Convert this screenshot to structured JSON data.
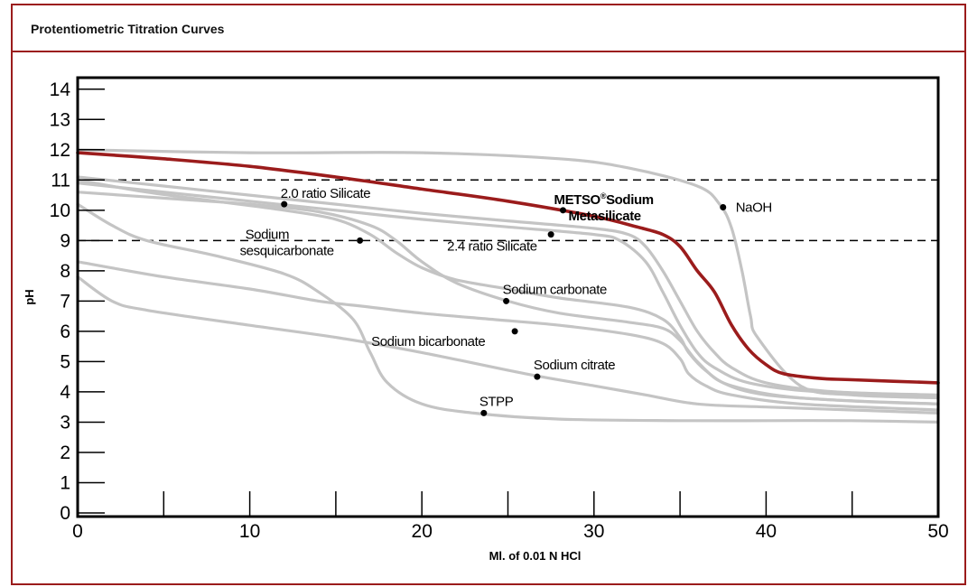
{
  "panel": {
    "title": "Protentiometric Titration Curves"
  },
  "chart_data": {
    "type": "line",
    "title": "",
    "xlabel": "Ml. of 0.01 N HCl",
    "ylabel": "pH",
    "xlim": [
      0,
      50
    ],
    "ylim": [
      0,
      15
    ],
    "x_ticks": [
      0,
      10,
      20,
      30,
      40,
      50
    ],
    "x_minor_ticks": [
      5,
      15,
      25,
      35,
      45
    ],
    "y_ticks": [
      0,
      1,
      2,
      3,
      4,
      5,
      6,
      7,
      8,
      9,
      10,
      11,
      12,
      13,
      14
    ],
    "reference_lines": [
      9,
      11
    ],
    "colors": {
      "highlight": "#9b1c1c",
      "curves": "#c4c4c4",
      "axis": "#000000"
    },
    "series": [
      {
        "id": "naoh",
        "highlight": false,
        "points": [
          [
            0,
            12
          ],
          [
            10,
            11.9
          ],
          [
            20,
            11.9
          ],
          [
            28,
            11.7
          ],
          [
            32,
            11.4
          ],
          [
            36,
            10.8
          ],
          [
            37.3,
            10.2
          ],
          [
            38,
            9.4
          ],
          [
            38.6,
            8
          ],
          [
            39.1,
            6.5
          ],
          [
            39.5,
            5.8
          ],
          [
            42,
            4.2
          ],
          [
            45,
            3.9
          ],
          [
            50,
            3.8
          ]
        ]
      },
      {
        "id": "metso",
        "highlight": true,
        "points": [
          [
            0,
            11.9
          ],
          [
            5,
            11.7
          ],
          [
            10,
            11.45
          ],
          [
            15,
            11.1
          ],
          [
            20,
            10.7
          ],
          [
            25,
            10.3
          ],
          [
            30,
            9.8
          ],
          [
            32.5,
            9.45
          ],
          [
            34,
            9.2
          ],
          [
            35,
            8.8
          ],
          [
            36,
            8.0
          ],
          [
            37,
            7.3
          ],
          [
            38,
            6.2
          ],
          [
            39,
            5.4
          ],
          [
            40,
            4.9
          ],
          [
            41,
            4.6
          ],
          [
            43,
            4.45
          ],
          [
            45,
            4.4
          ],
          [
            50,
            4.3
          ]
        ]
      },
      {
        "id": "silicate-2-0",
        "highlight": false,
        "points": [
          [
            0,
            11.1
          ],
          [
            5,
            10.8
          ],
          [
            10,
            10.5
          ],
          [
            15,
            10.2
          ],
          [
            20,
            9.9
          ],
          [
            25,
            9.65
          ],
          [
            30,
            9.4
          ],
          [
            32,
            9.2
          ],
          [
            33,
            8.8
          ],
          [
            34,
            8.0
          ],
          [
            35,
            7.0
          ],
          [
            36,
            6.0
          ],
          [
            37,
            5.3
          ],
          [
            38,
            4.8
          ],
          [
            40,
            4.3
          ],
          [
            44,
            4.0
          ],
          [
            50,
            3.9
          ]
        ]
      },
      {
        "id": "silicate-2-4",
        "highlight": false,
        "points": [
          [
            0,
            10.9
          ],
          [
            5,
            10.6
          ],
          [
            10,
            10.3
          ],
          [
            15,
            10.0
          ],
          [
            20,
            9.7
          ],
          [
            25,
            9.45
          ],
          [
            30,
            9.2
          ],
          [
            31.5,
            9.0
          ],
          [
            33,
            8.3
          ],
          [
            34,
            7.3
          ],
          [
            35,
            6.2
          ],
          [
            36,
            5.3
          ],
          [
            37,
            4.8
          ],
          [
            39,
            4.3
          ],
          [
            43,
            4.0
          ],
          [
            50,
            3.85
          ]
        ]
      },
      {
        "id": "sesquicarbonate",
        "highlight": false,
        "points": [
          [
            0,
            11.0
          ],
          [
            4,
            10.6
          ],
          [
            8,
            10.3
          ],
          [
            12,
            10.0
          ],
          [
            15,
            9.7
          ],
          [
            17,
            9.2
          ],
          [
            18.5,
            8.6
          ],
          [
            20,
            8.1
          ],
          [
            22,
            7.7
          ],
          [
            25,
            7.4
          ],
          [
            28,
            7.1
          ],
          [
            32,
            6.8
          ],
          [
            34,
            6.4
          ],
          [
            35,
            5.8
          ],
          [
            35.5,
            5.3
          ],
          [
            36.5,
            4.7
          ],
          [
            38,
            4.2
          ],
          [
            42,
            3.8
          ],
          [
            50,
            3.6
          ]
        ]
      },
      {
        "id": "carbonate",
        "highlight": false,
        "points": [
          [
            0,
            10.6
          ],
          [
            5,
            10.4
          ],
          [
            10,
            10.2
          ],
          [
            14,
            9.95
          ],
          [
            17,
            9.5
          ],
          [
            18.5,
            9.0
          ],
          [
            20,
            8.3
          ],
          [
            22,
            7.6
          ],
          [
            25,
            7.0
          ],
          [
            28,
            6.6
          ],
          [
            32,
            6.3
          ],
          [
            34,
            6.1
          ],
          [
            35,
            5.7
          ],
          [
            36,
            5.0
          ],
          [
            37.5,
            4.3
          ],
          [
            40,
            3.9
          ],
          [
            45,
            3.7
          ],
          [
            50,
            3.6
          ]
        ]
      },
      {
        "id": "bicarbonate",
        "highlight": false,
        "points": [
          [
            0,
            8.3
          ],
          [
            5,
            7.8
          ],
          [
            10,
            7.4
          ],
          [
            14,
            7.0
          ],
          [
            17,
            6.8
          ],
          [
            20,
            6.6
          ],
          [
            24,
            6.4
          ],
          [
            28,
            6.2
          ],
          [
            32,
            5.9
          ],
          [
            34,
            5.6
          ],
          [
            35,
            5.1
          ],
          [
            35.5,
            4.6
          ],
          [
            36.5,
            4.2
          ],
          [
            38,
            3.9
          ],
          [
            42,
            3.6
          ],
          [
            50,
            3.4
          ]
        ]
      },
      {
        "id": "citrate",
        "highlight": false,
        "points": [
          [
            0,
            7.8
          ],
          [
            2,
            7.0
          ],
          [
            4,
            6.7
          ],
          [
            10,
            6.2
          ],
          [
            15,
            5.8
          ],
          [
            20,
            5.3
          ],
          [
            26,
            4.6
          ],
          [
            30,
            4.2
          ],
          [
            33,
            3.9
          ],
          [
            36,
            3.6
          ],
          [
            40,
            3.5
          ],
          [
            45,
            3.4
          ],
          [
            50,
            3.3
          ]
        ]
      },
      {
        "id": "stpp",
        "highlight": false,
        "points": [
          [
            0,
            10.2
          ],
          [
            2,
            9.5
          ],
          [
            4,
            9.0
          ],
          [
            8,
            8.5
          ],
          [
            12,
            7.9
          ],
          [
            14,
            7.3
          ],
          [
            16,
            6.4
          ],
          [
            17,
            5.3
          ],
          [
            18,
            4.3
          ],
          [
            20,
            3.6
          ],
          [
            23,
            3.3
          ],
          [
            28,
            3.1
          ],
          [
            35,
            3.05
          ],
          [
            40,
            3.05
          ],
          [
            45,
            3.05
          ],
          [
            50,
            3.0
          ]
        ]
      }
    ],
    "labels": [
      {
        "id": "label-naoh",
        "text": "NaOH",
        "dot": [
          37.5,
          10.1
        ],
        "dx": 14,
        "dy": 5,
        "anchor": "start",
        "bold": false
      },
      {
        "id": "label-metso-1",
        "text": "METSO",
        "dot": [
          28.2,
          10.0
        ],
        "dx": -10,
        "dy": -7,
        "anchor": "start",
        "bold": true
      },
      {
        "id": "label-metso-2",
        "text": "Metasilicate",
        "dx": 6,
        "dy": 11,
        "anchor": "start",
        "bold": true
      },
      {
        "id": "label-silicate-2-0",
        "text": "2.0 ratio Silicate",
        "dot": [
          12,
          10.2
        ],
        "dx": -4,
        "dy": -7,
        "anchor": "start",
        "bold": false
      },
      {
        "id": "label-silicate-2-4",
        "text": "2.4 ratio Silicate",
        "dot": [
          27.5,
          9.2
        ],
        "dx": -115,
        "dy": 18,
        "anchor": "start",
        "bold": false
      },
      {
        "id": "label-sesqui-1",
        "text": "Sodium",
        "dot": [
          16.4,
          9.0
        ],
        "dx": -127,
        "dy": -2,
        "anchor": "start",
        "bold": false
      },
      {
        "id": "label-sesqui-2",
        "text": "sesquicarbonate",
        "dx": -133,
        "dy": 16,
        "anchor": "start",
        "bold": false
      },
      {
        "id": "label-carbonate",
        "text": "Sodium carbonate",
        "dot": [
          24.9,
          7.0
        ],
        "dx": -4,
        "dy": -8,
        "anchor": "start",
        "bold": false
      },
      {
        "id": "label-bicarbonate",
        "text": "Sodium bicarbonate",
        "dot": [
          25.4,
          6.0
        ],
        "dx": -159,
        "dy": 16,
        "anchor": "start",
        "bold": false
      },
      {
        "id": "label-citrate",
        "text": "Sodium citrate",
        "dot": [
          26.7,
          4.5
        ],
        "dx": -4,
        "dy": -8,
        "anchor": "start",
        "bold": false
      },
      {
        "id": "label-stpp",
        "text": "STPP",
        "dot": [
          23.6,
          3.3
        ],
        "dx": -5,
        "dy": -8,
        "anchor": "start",
        "bold": false
      }
    ],
    "registered_mark": "®",
    "metso_suffix": "Sodium"
  }
}
